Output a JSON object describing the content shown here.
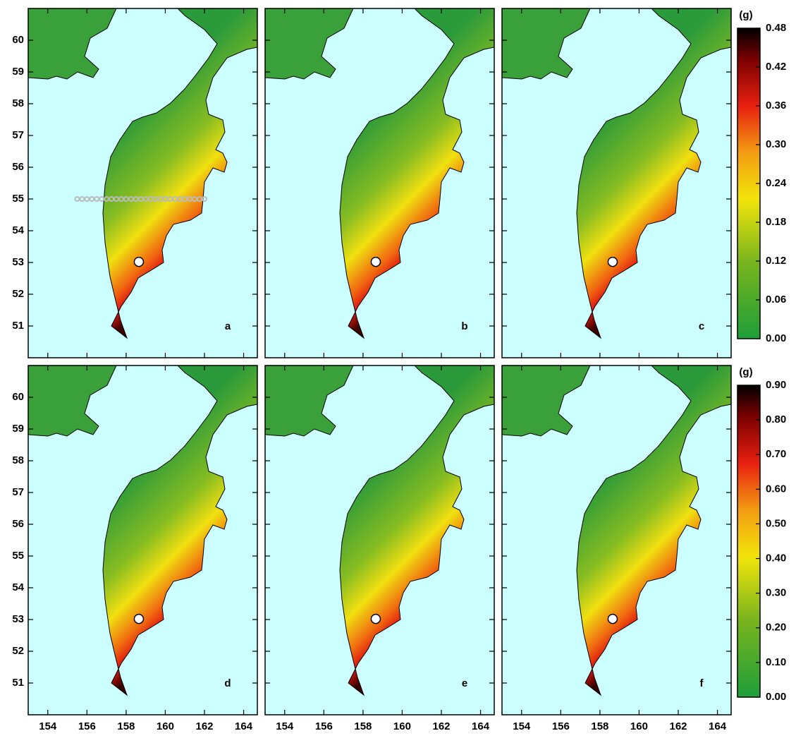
{
  "map": {
    "xlim": [
      153,
      164.7
    ],
    "ylim": [
      50,
      61
    ],
    "xticks": [
      154,
      156,
      158,
      160,
      162,
      164
    ],
    "yticks": [
      51,
      52,
      53,
      54,
      55,
      56,
      57,
      58,
      59,
      60
    ],
    "panels": [
      {
        "label": "a"
      },
      {
        "label": "b"
      },
      {
        "label": "c"
      },
      {
        "label": "d"
      },
      {
        "label": "e"
      },
      {
        "label": "f"
      }
    ],
    "colorbars": [
      {
        "unit": "(g)",
        "lim": [
          0,
          0.48
        ],
        "ticks": [
          {
            "value": 0,
            "label": "0.00"
          },
          0.06,
          0.12,
          0.18,
          0.24,
          {
            "value": 0.3,
            "label": "0.30"
          },
          0.36,
          0.42,
          0.48
        ]
      },
      {
        "unit": "(g)",
        "lim": [
          0,
          0.9
        ],
        "ticks": [
          {
            "value": 0,
            "label": "0.00"
          },
          {
            "value": 0.1,
            "label": "0.10"
          },
          {
            "value": 0.2,
            "label": "0.20"
          },
          {
            "value": 0.3,
            "label": "0.30"
          },
          {
            "value": 0.4,
            "label": "0.40"
          },
          {
            "value": 0.5,
            "label": "0.50"
          },
          {
            "value": 0.6,
            "label": "0.60"
          },
          {
            "value": 0.7,
            "label": "0.70"
          },
          {
            "value": 0.8,
            "label": "0.80"
          },
          {
            "value": 0.9,
            "label": "0.90"
          }
        ]
      }
    ]
  }
}
